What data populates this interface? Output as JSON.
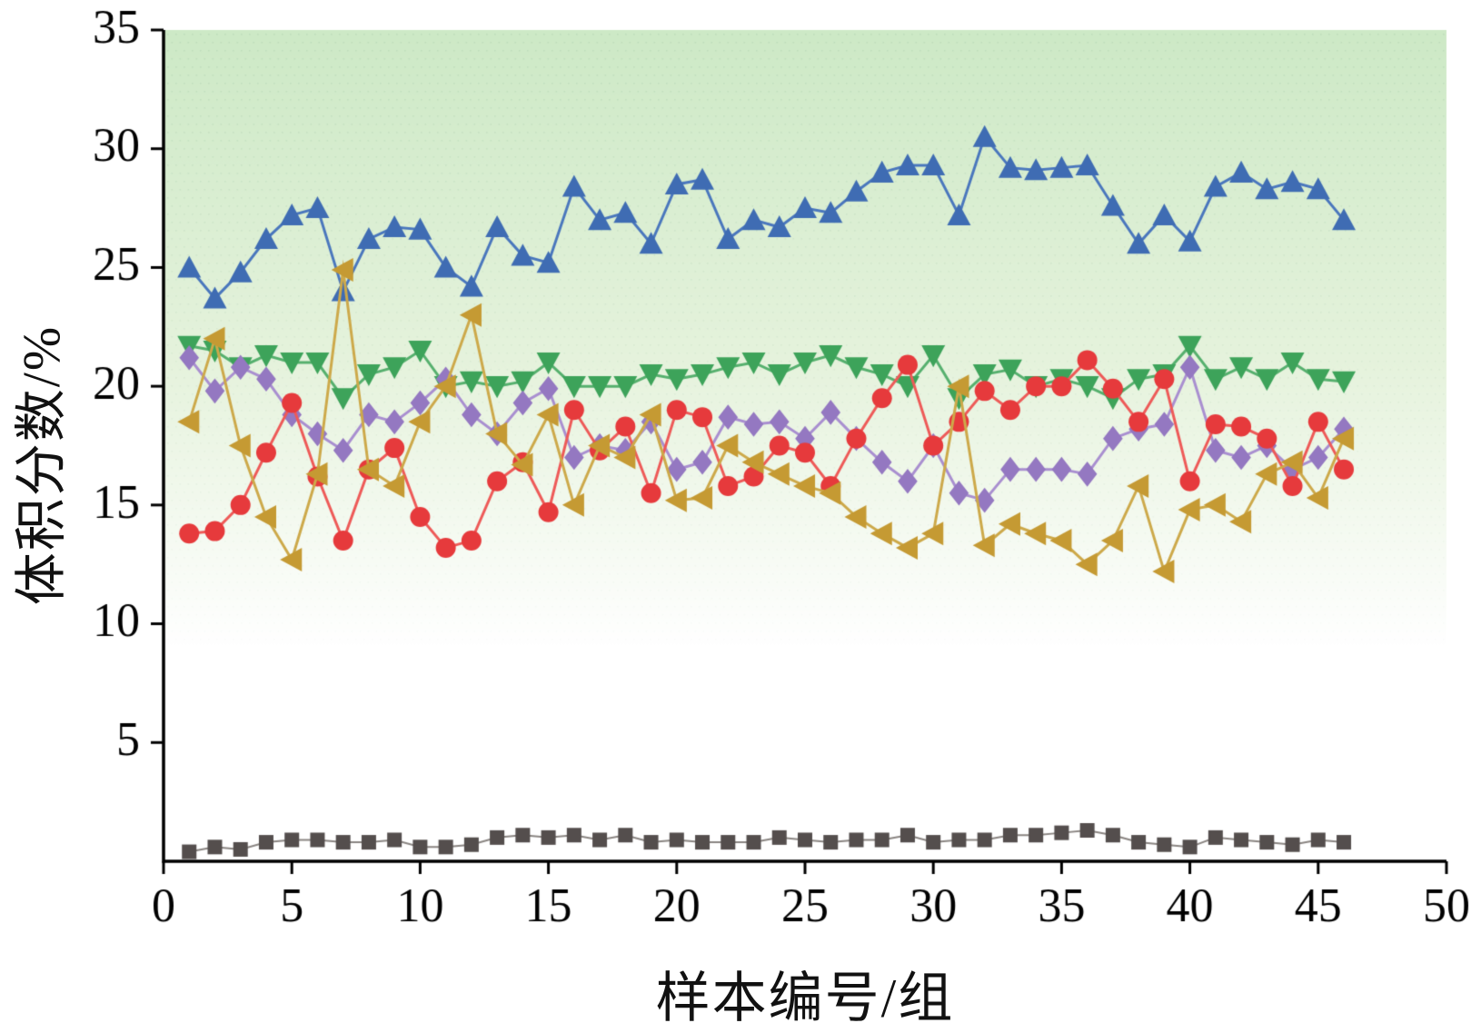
{
  "chart_data": {
    "type": "line",
    "title": "",
    "xlabel": "样本编号/组",
    "ylabel": "体积分数/%",
    "xlim": [
      0,
      50
    ],
    "ylim": [
      0,
      35
    ],
    "xticks": [
      0,
      5,
      10,
      15,
      20,
      25,
      30,
      35,
      40,
      45,
      50
    ],
    "yticks": [
      5,
      10,
      15,
      20,
      25,
      30,
      35
    ],
    "grid": false,
    "legend": "none",
    "background": {
      "top_color": "#cde9c6",
      "mid_color": "#e6f3dd",
      "bottom_color": "#ffffff",
      "fade_end_fraction": 0.74,
      "dot_color": "#8fb89a"
    },
    "x": [
      1,
      2,
      3,
      4,
      5,
      6,
      7,
      8,
      9,
      10,
      11,
      12,
      13,
      14,
      15,
      16,
      17,
      18,
      19,
      20,
      21,
      22,
      23,
      24,
      25,
      26,
      27,
      28,
      29,
      30,
      31,
      32,
      33,
      34,
      35,
      36,
      37,
      38,
      39,
      40,
      41,
      42,
      43,
      44,
      45,
      46
    ],
    "series": [
      {
        "name": "blue-up-triangles",
        "marker": "triangle-up",
        "color": "#3f6cb3",
        "line_color": "#4a77bd",
        "values": [
          25.0,
          23.7,
          24.8,
          26.2,
          27.2,
          27.5,
          24.0,
          26.2,
          26.7,
          26.6,
          25.0,
          24.2,
          26.7,
          25.5,
          25.2,
          28.4,
          27.0,
          27.3,
          26.0,
          28.5,
          28.7,
          26.2,
          27.0,
          26.7,
          27.5,
          27.3,
          28.2,
          29.0,
          29.3,
          29.3,
          27.2,
          30.5,
          29.2,
          29.1,
          29.2,
          29.3,
          27.6,
          26.0,
          27.2,
          26.1,
          28.4,
          29.0,
          28.3,
          28.6,
          28.3,
          27.0
        ]
      },
      {
        "name": "green-down-triangles",
        "marker": "triangle-down",
        "color": "#3da35a",
        "line_color": "#56b06e",
        "values": [
          21.7,
          21.5,
          20.8,
          21.3,
          21.0,
          21.0,
          19.5,
          20.5,
          20.8,
          21.5,
          20.0,
          20.2,
          20.0,
          20.2,
          21.0,
          20.0,
          20.0,
          20.0,
          20.5,
          20.3,
          20.5,
          20.8,
          21.0,
          20.5,
          21.0,
          21.3,
          20.8,
          20.5,
          20.0,
          21.3,
          19.5,
          20.5,
          20.7,
          20.0,
          20.3,
          20.0,
          19.5,
          20.3,
          20.5,
          21.7,
          20.3,
          20.8,
          20.3,
          21.0,
          20.3,
          20.2
        ]
      },
      {
        "name": "purple-diamonds",
        "marker": "diamond",
        "color": "#9478c1",
        "line_color": "#a98fd0",
        "values": [
          21.2,
          19.8,
          20.8,
          20.3,
          18.8,
          18.0,
          17.3,
          18.8,
          18.5,
          19.3,
          20.3,
          18.8,
          18.0,
          19.3,
          19.9,
          17.0,
          17.5,
          17.3,
          18.5,
          16.5,
          16.8,
          18.7,
          18.4,
          18.5,
          17.8,
          18.9,
          17.8,
          16.8,
          16.0,
          17.5,
          15.5,
          15.2,
          16.5,
          16.5,
          16.5,
          16.3,
          17.8,
          18.2,
          18.4,
          20.8,
          17.3,
          17.0,
          17.5,
          16.5,
          17.0,
          18.2
        ]
      },
      {
        "name": "red-circles",
        "marker": "circle",
        "color": "#e63a3c",
        "line_color": "#ee5a58",
        "values": [
          13.8,
          13.9,
          15.0,
          17.2,
          19.3,
          16.2,
          13.5,
          16.5,
          17.4,
          14.5,
          13.2,
          13.5,
          16.0,
          16.8,
          14.7,
          19.0,
          17.3,
          18.3,
          15.5,
          19.0,
          18.7,
          15.8,
          16.2,
          17.5,
          17.2,
          15.8,
          17.8,
          19.5,
          20.9,
          17.5,
          18.5,
          19.8,
          19.0,
          20.0,
          20.0,
          21.1,
          19.9,
          18.5,
          20.3,
          16.0,
          18.4,
          18.3,
          17.8,
          15.8,
          18.5,
          16.5
        ]
      },
      {
        "name": "gold-left-triangles",
        "marker": "triangle-left",
        "color": "#c59a33",
        "line_color": "#cda94a",
        "values": [
          18.5,
          22.0,
          17.5,
          14.5,
          12.7,
          16.3,
          24.9,
          16.5,
          15.8,
          18.5,
          20.0,
          23.0,
          18.0,
          16.7,
          18.8,
          15.0,
          17.5,
          17.0,
          18.8,
          15.2,
          15.3,
          17.5,
          16.8,
          16.3,
          15.8,
          15.5,
          14.5,
          13.8,
          13.2,
          13.8,
          20.0,
          13.3,
          14.2,
          13.8,
          13.5,
          12.5,
          13.5,
          15.8,
          12.2,
          14.8,
          15.0,
          14.3,
          16.3,
          16.8,
          15.3,
          17.8
        ]
      },
      {
        "name": "gray-squares",
        "marker": "square",
        "color": "#544e4d",
        "line_color": "#8a8582",
        "values": [
          0.4,
          0.6,
          0.5,
          0.8,
          0.9,
          0.9,
          0.8,
          0.8,
          0.9,
          0.6,
          0.6,
          0.7,
          1.0,
          1.1,
          1.0,
          1.1,
          0.9,
          1.1,
          0.8,
          0.9,
          0.8,
          0.8,
          0.8,
          1.0,
          0.9,
          0.8,
          0.9,
          0.9,
          1.1,
          0.8,
          0.9,
          0.9,
          1.1,
          1.1,
          1.2,
          1.3,
          1.1,
          0.8,
          0.7,
          0.6,
          1.0,
          0.9,
          0.8,
          0.7,
          0.9,
          0.8
        ]
      }
    ]
  }
}
